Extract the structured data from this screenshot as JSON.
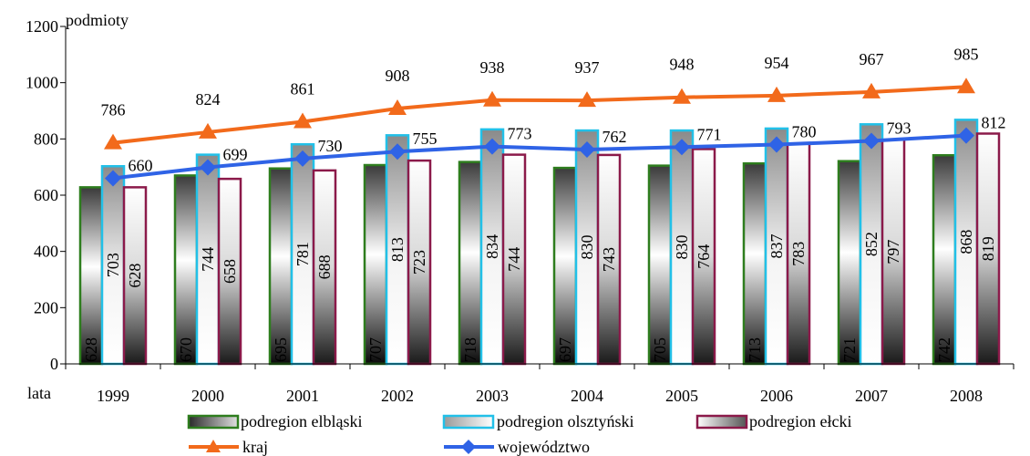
{
  "chart_data": {
    "type": "bar",
    "ylabel": "podmioty",
    "xlabel": "lata",
    "ylim": [
      0,
      1200
    ],
    "yticks": [
      0,
      200,
      400,
      600,
      800,
      1000,
      1200
    ],
    "grid": false,
    "legend_position": "bottom",
    "categories": [
      "1999",
      "2000",
      "2001",
      "2002",
      "2003",
      "2004",
      "2005",
      "2006",
      "2007",
      "2008"
    ],
    "bar_series": [
      {
        "name": "podregion elbląski",
        "values": [
          628,
          670,
          695,
          707,
          718,
          697,
          705,
          713,
          721,
          742
        ],
        "color": "#2e7d1e"
      },
      {
        "name": "podregion olsztyński",
        "values": [
          703,
          744,
          781,
          813,
          834,
          830,
          830,
          837,
          852,
          868
        ],
        "color": "#22c0e8"
      },
      {
        "name": "podregion ełcki",
        "values": [
          628,
          658,
          688,
          723,
          744,
          743,
          764,
          783,
          797,
          819
        ],
        "color": "#8b1a4a"
      }
    ],
    "line_series": [
      {
        "name": "kraj",
        "values": [
          786,
          824,
          861,
          908,
          938,
          937,
          948,
          954,
          967,
          985
        ],
        "color": "#f26a1b",
        "marker": "triangle"
      },
      {
        "name": "województwo",
        "values": [
          660,
          699,
          730,
          755,
          773,
          762,
          771,
          780,
          793,
          812
        ],
        "color": "#2f63e6",
        "marker": "diamond"
      }
    ]
  }
}
